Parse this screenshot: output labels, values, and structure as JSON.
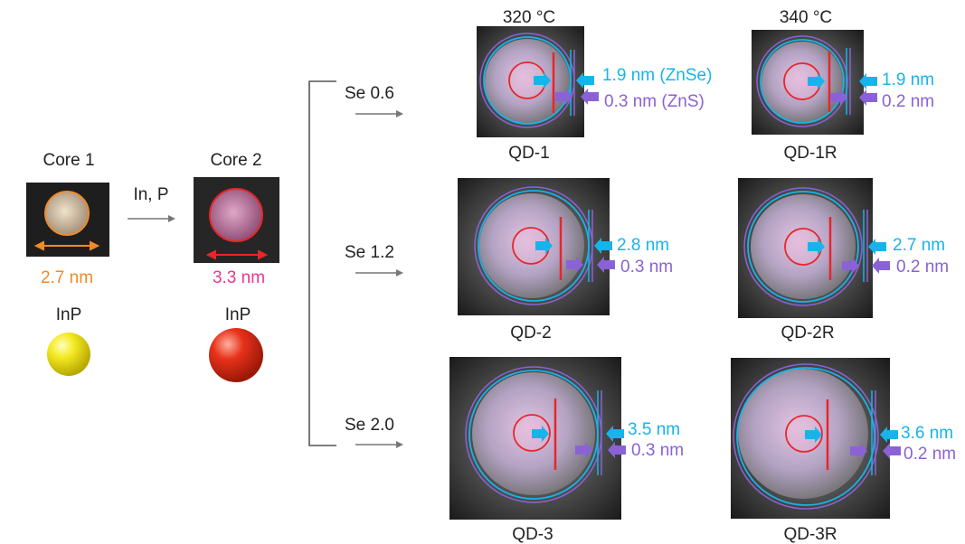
{
  "cores": [
    {
      "name": "Core 1",
      "size": "2.7 nm",
      "material": "InP",
      "ball_color": "#f2e21a",
      "size_color": "#f08a2a"
    },
    {
      "name": "Core 2",
      "size": "3.3 nm",
      "material": "InP",
      "ball_color": "#e02a10",
      "size_color": "#e8368f"
    }
  ],
  "reaction": "In, P",
  "branches": [
    "Se 0.6",
    "Se 1.2",
    "Se 2.0"
  ],
  "temperatures": [
    "320 °C",
    "340 °C"
  ],
  "qds": [
    {
      "label": "QD-1",
      "shell": "1.9 nm (ZnSe)",
      "outer": "0.3 nm (ZnS)"
    },
    {
      "label": "QD-1R",
      "shell": "1.9 nm",
      "outer": "0.2 nm"
    },
    {
      "label": "QD-2",
      "shell": "2.8 nm",
      "outer": "0.3 nm"
    },
    {
      "label": "QD-2R",
      "shell": "2.7 nm",
      "outer": "0.2 nm"
    },
    {
      "label": "QD-3",
      "shell": "3.5 nm",
      "outer": "0.3 nm"
    },
    {
      "label": "QD-3R",
      "shell": "3.6 nm",
      "outer": "0.2 nm"
    }
  ],
  "colors": {
    "cyan": "#16b4ea",
    "purple": "#8a62d6",
    "red": "#e8262a",
    "core_orange": "#f08a2a"
  }
}
